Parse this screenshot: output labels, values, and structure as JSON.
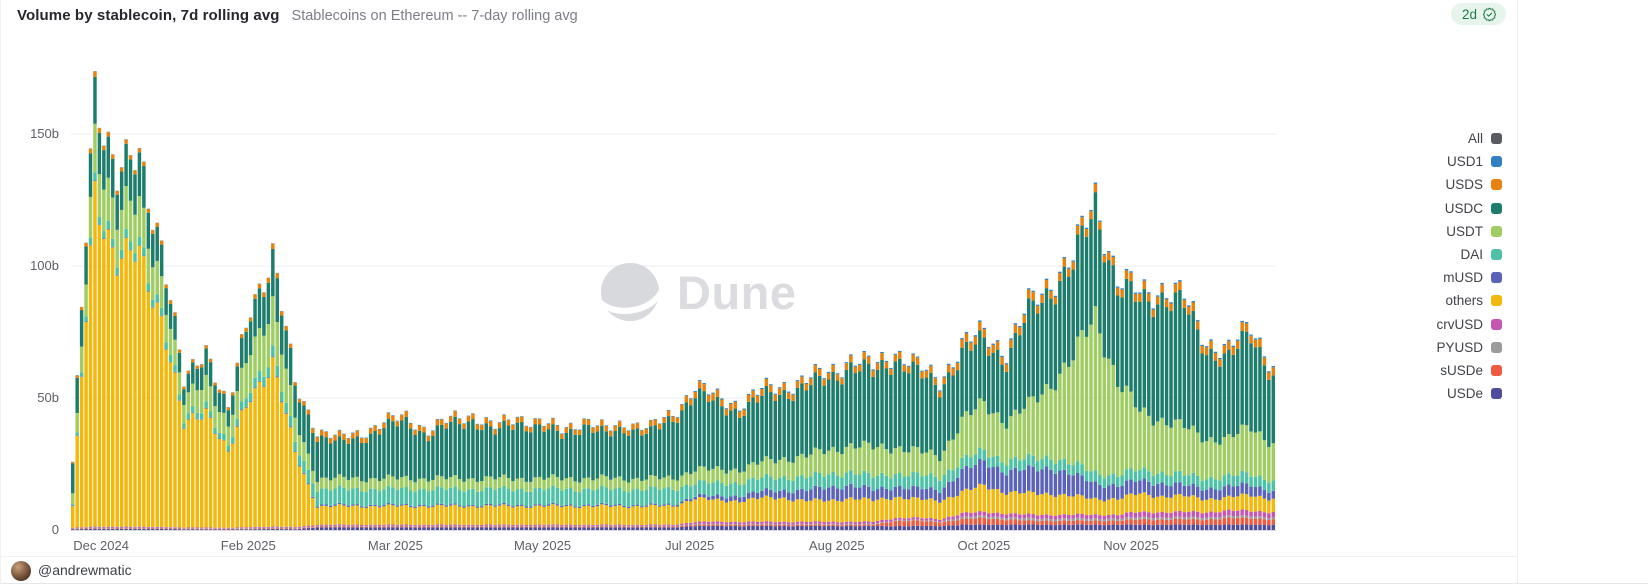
{
  "header": {
    "title": "Volume by stablecoin, 7d rolling avg",
    "subtitle": "Stablecoins on Ethereum -- 7-day rolling avg"
  },
  "watermark": {
    "text": "Dune",
    "logo": "dune-circle-swoosh",
    "color": "#dbdcdf"
  },
  "legend": {
    "position": "right",
    "items": [
      {
        "label": "All",
        "color": "#5a5b60"
      },
      {
        "label": "USD1",
        "color": "#3180c1"
      },
      {
        "label": "USDS",
        "color": "#e8820e"
      },
      {
        "label": "USDC",
        "color": "#1d7d6c"
      },
      {
        "label": "USDT",
        "color": "#a0cd63"
      },
      {
        "label": "DAI",
        "color": "#4ec2a6"
      },
      {
        "label": "mUSD",
        "color": "#5b63b8"
      },
      {
        "label": "others",
        "color": "#f2b80c"
      },
      {
        "label": "crvUSD",
        "color": "#c557b2"
      },
      {
        "label": "PYUSD",
        "color": "#9b9b9b"
      },
      {
        "label": "sUSDe",
        "color": "#ef5b41"
      },
      {
        "label": "USDe",
        "color": "#4f4c9c"
      }
    ]
  },
  "footer": {
    "author_handle": "@andrewmatic",
    "updated_badge": "2d",
    "verified_icon": "seal-check-icon",
    "badge_bg": "#e7f4ec",
    "badge_color": "#1e7a4b"
  },
  "chart_data": {
    "type": "bar",
    "stacked": true,
    "title": "Volume by stablecoin, 7d rolling avg",
    "subtitle": "Stablecoins on Ethereum -- 7-day rolling avg",
    "unit": "billions USD (b)",
    "ylabel": "",
    "xlabel": "",
    "ylim": [
      0,
      180
    ],
    "grid": true,
    "yticks": [
      {
        "value": 0,
        "label": "0"
      },
      {
        "value": 50,
        "label": "50b"
      },
      {
        "value": 100,
        "label": "100b"
      },
      {
        "value": 150,
        "label": "150b"
      }
    ],
    "xticks": [
      "Dec 2024",
      "Feb 2025",
      "Mar 2025",
      "May 2025",
      "Jul 2025",
      "Aug 2025",
      "Oct 2025",
      "Nov 2025"
    ],
    "x_range": "Dec 2024 - early Dec 2025, daily bars (7-day rolling average), values below are weekly anchor points in billions",
    "stack_order_bottom_to_top": [
      "USDe",
      "sUSDe",
      "PYUSD",
      "crvUSD",
      "others",
      "mUSD",
      "DAI",
      "USDT",
      "USDC",
      "USDS",
      "USD1"
    ],
    "series": [
      {
        "name": "USDe",
        "color": "#4f4c9c",
        "values": [
          0.2,
          0.5,
          0.4,
          0.4,
          0.4,
          0.3,
          0.3,
          0.2,
          0.3,
          0.4,
          0.3,
          1,
          1,
          1,
          1,
          1,
          1,
          1,
          1,
          1,
          1,
          1,
          1,
          1,
          1,
          1,
          1,
          1,
          1.5,
          1.5,
          1.5,
          1.5,
          1.5,
          1.5,
          1.5,
          1.5,
          1.5,
          1.5,
          1.5,
          1.5,
          2,
          2,
          2,
          2,
          2,
          2,
          2,
          2,
          2,
          2,
          2,
          2,
          2,
          2,
          2
        ]
      },
      {
        "name": "sUSDe",
        "color": "#ef5b41",
        "values": [
          0.2,
          0.2,
          0.2,
          0.2,
          0.2,
          0.2,
          0.2,
          0.2,
          0.2,
          0.3,
          0.2,
          0.3,
          0.3,
          0.3,
          0.3,
          0.3,
          0.3,
          0.3,
          0.3,
          0.3,
          0.3,
          0.3,
          0.3,
          0.3,
          0.3,
          0.3,
          0.3,
          0.3,
          0.5,
          0.5,
          0.5,
          0.5,
          0.5,
          0.5,
          0.5,
          0.5,
          0.5,
          2,
          2,
          1.5,
          2,
          2.5,
          2,
          1.5,
          1.5,
          1.5,
          1.5,
          1.5,
          2,
          2,
          2,
          2,
          2.5,
          2.5,
          2
        ]
      },
      {
        "name": "PYUSD",
        "color": "#9b9b9b",
        "values": [
          0.2,
          0.3,
          0.3,
          0.3,
          0.3,
          0.2,
          0.2,
          0.2,
          0.3,
          0.3,
          0.3,
          0.3,
          0.3,
          0.3,
          0.3,
          0.3,
          0.3,
          0.3,
          0.3,
          0.3,
          0.3,
          0.3,
          0.3,
          0.3,
          0.3,
          0.3,
          0.3,
          0.3,
          0.3,
          0.3,
          0.3,
          0.3,
          0.3,
          0.3,
          0.3,
          0.3,
          0.3,
          0.3,
          0.3,
          0.3,
          0.8,
          0.8,
          0.8,
          0.8,
          0.8,
          0.8,
          0.8,
          0.8,
          0.8,
          0.8,
          0.8,
          0.8,
          0.8,
          0.8,
          0.8
        ]
      },
      {
        "name": "crvUSD",
        "color": "#c557b2",
        "values": [
          0.2,
          0.3,
          0.3,
          0.3,
          0.3,
          0.2,
          0.3,
          0.2,
          0.3,
          0.3,
          0.3,
          0.4,
          0.4,
          0.4,
          0.4,
          0.4,
          0.4,
          0.4,
          0.4,
          0.4,
          0.4,
          0.4,
          0.4,
          0.4,
          0.4,
          0.4,
          0.4,
          0.4,
          0.8,
          0.8,
          0.8,
          0.8,
          0.8,
          0.8,
          0.8,
          0.8,
          0.8,
          0.8,
          0.8,
          0.8,
          1.5,
          1.5,
          1.5,
          1.5,
          1.5,
          1.5,
          1.5,
          1.5,
          2,
          2,
          2,
          2,
          2,
          2,
          2
        ]
      },
      {
        "name": "others",
        "color": "#f2b80c",
        "values": [
          8,
          128,
          100,
          103,
          80,
          38,
          45,
          28,
          50,
          62,
          28,
          7,
          7,
          7,
          7,
          7,
          7,
          7,
          7,
          7,
          7,
          7,
          7,
          7,
          7,
          7,
          7,
          7,
          9,
          8,
          8,
          9,
          9,
          8,
          8,
          9,
          8,
          8,
          7,
          7,
          8,
          10,
          8,
          8,
          8,
          7,
          6,
          6,
          7,
          6,
          6,
          5,
          5,
          6,
          5
        ]
      },
      {
        "name": "mUSD",
        "color": "#5b63b8",
        "values": [
          0.2,
          0.2,
          0.2,
          0.2,
          0.2,
          0.2,
          0.2,
          0.2,
          0.3,
          0.3,
          0.3,
          0.5,
          0.5,
          0.5,
          0.5,
          0.5,
          0.5,
          0.5,
          0.5,
          0.5,
          0.5,
          0.5,
          0.5,
          0.5,
          0.5,
          0.5,
          0.5,
          0.5,
          1,
          1.5,
          2,
          2.5,
          3,
          4,
          5,
          5,
          4,
          4,
          4,
          4,
          8,
          9,
          8,
          9,
          10,
          8,
          6,
          5,
          5,
          5,
          4,
          4,
          4,
          4,
          3
        ]
      },
      {
        "name": "DAI",
        "color": "#4ec2a6",
        "values": [
          0.5,
          3,
          3,
          3,
          3,
          2,
          2.5,
          2,
          3.5,
          4,
          3.5,
          6,
          6,
          6,
          6,
          6,
          6,
          6,
          6,
          6,
          6,
          6,
          6,
          6,
          6,
          6,
          6,
          6,
          5,
          5,
          5,
          5,
          5,
          5,
          5,
          5,
          5,
          5,
          5,
          5,
          4,
          4,
          4,
          4,
          4,
          4,
          4,
          4,
          4,
          4,
          4,
          4,
          4,
          4,
          4
        ]
      },
      {
        "name": "USDT",
        "color": "#a0cd63",
        "values": [
          4,
          18,
          15,
          15,
          12,
          7,
          10,
          7,
          15,
          18,
          9,
          4,
          4,
          4,
          4,
          4,
          4,
          4,
          4,
          4,
          4,
          4,
          4,
          4,
          4,
          4,
          4,
          4,
          5,
          5,
          5,
          6,
          7,
          8,
          9,
          10,
          11,
          10,
          9,
          8,
          15,
          18,
          15,
          20,
          28,
          40,
          60,
          35,
          22,
          20,
          18,
          15,
          14,
          18,
          14
        ]
      },
      {
        "name": "USDC",
        "color": "#1d7d6c",
        "values": [
          11,
          17.4,
          14,
          16,
          12,
          6,
          10,
          6,
          13.5,
          17.3,
          12,
          16.3,
          13.3,
          15.3,
          19.3,
          21.3,
          16.3,
          20.3,
          22.3,
          17.3,
          21.3,
          19.3,
          16.3,
          20.3,
          16.3,
          19.3,
          17.3,
          22.3,
          29,
          24.5,
          22,
          24.5,
          25,
          26,
          27,
          30,
          28,
          33.5,
          29.5,
          26,
          25.2,
          23.7,
          23.2,
          34.7,
          35.7,
          34.7,
          41.7,
          35.7,
          41.7,
          46.7,
          45.7,
          33.7,
          30.2,
          35.2,
          25.7
        ]
      },
      {
        "name": "USDS",
        "color": "#e8820e",
        "values": [
          0.5,
          2,
          1.5,
          1.5,
          1.5,
          1,
          1.2,
          1,
          1.5,
          2,
          1.2,
          2,
          2,
          2,
          2,
          2,
          2,
          2,
          2,
          2,
          2,
          2,
          2,
          2,
          2,
          2,
          2,
          2,
          2.5,
          2.5,
          2.5,
          2.5,
          2.5,
          2.5,
          2.5,
          2.5,
          2.5,
          2.5,
          2.5,
          2.5,
          3,
          3,
          3,
          3,
          3,
          3,
          3,
          3,
          3,
          3,
          3,
          3,
          3,
          3,
          3
        ]
      },
      {
        "name": "USD1",
        "color": "#3180c1",
        "values": [
          0.1,
          0.1,
          0.1,
          0.1,
          0.1,
          0.1,
          0.1,
          0.1,
          0.1,
          0.1,
          0.1,
          0.2,
          0.2,
          0.2,
          0.2,
          0.2,
          0.2,
          0.2,
          0.2,
          0.2,
          0.2,
          0.2,
          0.2,
          0.2,
          0.2,
          0.2,
          0.2,
          0.2,
          0.4,
          0.4,
          0.4,
          0.4,
          0.4,
          0.4,
          0.4,
          0.4,
          0.4,
          0.4,
          0.4,
          0.4,
          0.5,
          0.5,
          0.5,
          0.5,
          0.5,
          0.5,
          0.5,
          0.5,
          0.5,
          0.5,
          0.5,
          0.5,
          0.5,
          0.5,
          0.5
        ]
      }
    ]
  }
}
